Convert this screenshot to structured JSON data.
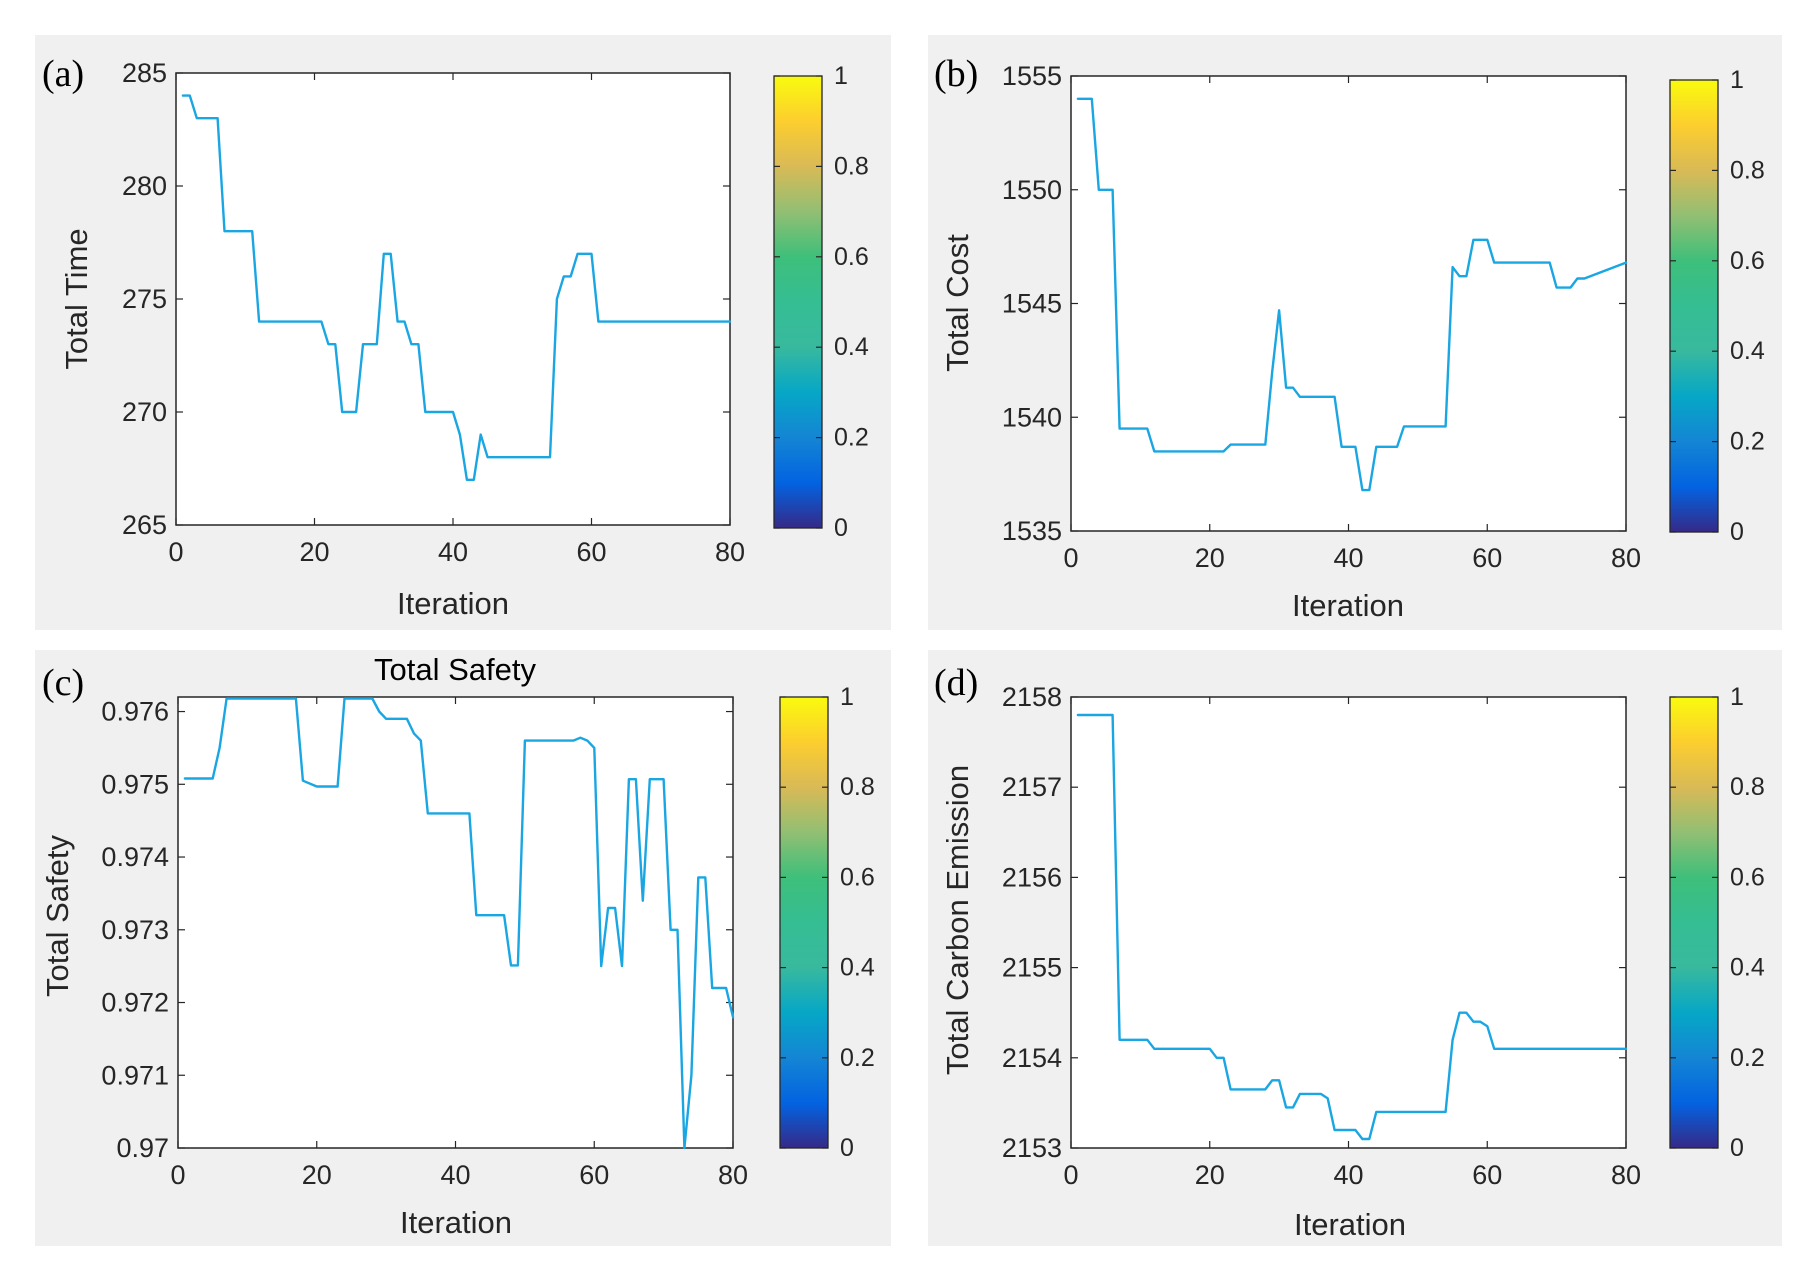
{
  "figure": {
    "background": "#ffffff",
    "panel_background": "#f0f0f0",
    "line_color": "#1aa6e2"
  },
  "chart_data": [
    {
      "id": "a",
      "type": "line",
      "tag": "(a)",
      "title": "",
      "xlabel": "Iteration",
      "ylabel": "Total Time",
      "xlim": [
        0,
        80
      ],
      "ylim": [
        265,
        285
      ],
      "xticks": [
        0,
        20,
        40,
        60,
        80
      ],
      "xtick_labels": [
        "0",
        "20",
        "40",
        "60",
        "80"
      ],
      "yticks": [
        265,
        270,
        275,
        280,
        285
      ],
      "ytick_labels": [
        "265",
        "270",
        "275",
        "280",
        "285"
      ],
      "colorbar": {
        "ticks": [
          0,
          0.2,
          0.4,
          0.6,
          0.8,
          1
        ],
        "labels": [
          "0",
          "0.2",
          "0.4",
          "0.6",
          "0.8",
          "1"
        ]
      },
      "series": [
        {
          "name": "Total Time",
          "color": "#1aa6e2",
          "x": [
            1,
            2,
            3,
            5,
            6,
            7,
            8,
            11,
            12,
            13,
            21,
            22,
            23,
            24,
            25,
            26,
            27,
            28,
            29,
            30,
            31,
            32,
            33,
            34,
            35,
            36,
            37,
            39,
            40,
            41,
            42,
            43,
            44,
            45,
            46,
            47,
            54,
            55,
            56,
            57,
            58,
            59,
            60,
            61,
            62,
            80
          ],
          "y": [
            284,
            284,
            283,
            283,
            283,
            278,
            278,
            278,
            274,
            274,
            274,
            273,
            273,
            270,
            270,
            270,
            273,
            273,
            273,
            277,
            277,
            274,
            274,
            273,
            273,
            270,
            270,
            270,
            270,
            269,
            267,
            267,
            269,
            268,
            268,
            268,
            268,
            275,
            276,
            276,
            277,
            277,
            277,
            274,
            274,
            274
          ]
        }
      ]
    },
    {
      "id": "b",
      "type": "line",
      "tag": "(b)",
      "title": "",
      "xlabel": "Iteration",
      "ylabel": "Total Cost",
      "xlim": [
        0,
        80
      ],
      "ylim": [
        1535,
        1555
      ],
      "xticks": [
        0,
        20,
        40,
        60,
        80
      ],
      "xtick_labels": [
        "0",
        "20",
        "40",
        "60",
        "80"
      ],
      "yticks": [
        1535,
        1540,
        1545,
        1550,
        1555
      ],
      "ytick_labels": [
        "1535",
        "1540",
        "1545",
        "1550",
        "1555"
      ],
      "colorbar": {
        "ticks": [
          0,
          0.2,
          0.4,
          0.6,
          0.8,
          1
        ],
        "labels": [
          "0",
          "0.2",
          "0.4",
          "0.6",
          "0.8",
          "1"
        ]
      },
      "series": [
        {
          "name": "Total Cost",
          "color": "#1aa6e2",
          "x": [
            1,
            3,
            4,
            6,
            7,
            8,
            11,
            12,
            22,
            23,
            28,
            29,
            30,
            31,
            32,
            33,
            38,
            39,
            40,
            41,
            42,
            43,
            44,
            47,
            48,
            54,
            55,
            56,
            57,
            58,
            59,
            60,
            61,
            69,
            70,
            72,
            73,
            74,
            80
          ],
          "y": [
            1554,
            1554,
            1550,
            1550,
            1539.5,
            1539.5,
            1539.5,
            1538.5,
            1538.5,
            1538.8,
            1538.8,
            1542,
            1544.7,
            1541.3,
            1541.3,
            1540.9,
            1540.9,
            1538.7,
            1538.7,
            1538.7,
            1536.8,
            1536.8,
            1538.7,
            1538.7,
            1539.6,
            1539.6,
            1546.6,
            1546.2,
            1546.2,
            1547.8,
            1547.8,
            1547.8,
            1546.8,
            1546.8,
            1545.7,
            1545.7,
            1546.1,
            1546.1,
            1546.8
          ]
        }
      ]
    },
    {
      "id": "c",
      "type": "line",
      "tag": "(c)",
      "title": "Total Safety",
      "xlabel": "Iteration",
      "ylabel": "Total Safety",
      "xlim": [
        0,
        80
      ],
      "ylim": [
        0.97,
        0.9762
      ],
      "xticks": [
        0,
        20,
        40,
        60,
        80
      ],
      "xtick_labels": [
        "0",
        "20",
        "40",
        "60",
        "80"
      ],
      "yticks": [
        0.97,
        0.971,
        0.972,
        0.973,
        0.974,
        0.975,
        0.976
      ],
      "ytick_labels": [
        "0.97",
        "0.971",
        "0.972",
        "0.973",
        "0.974",
        "0.975",
        "0.976"
      ],
      "colorbar": {
        "ticks": [
          0,
          0.2,
          0.4,
          0.6,
          0.8,
          1
        ],
        "labels": [
          "0",
          "0.2",
          "0.4",
          "0.6",
          "0.8",
          "1"
        ]
      },
      "series": [
        {
          "name": "Total Safety",
          "color": "#1aa6e2",
          "x": [
            1,
            2,
            5,
            6,
            7,
            8,
            17,
            18,
            20,
            23,
            24,
            25,
            28,
            29,
            30,
            33,
            34,
            35,
            36,
            37,
            42,
            43,
            47,
            48,
            49,
            50,
            57,
            58,
            59,
            60,
            61,
            62,
            63,
            64,
            65,
            66,
            67,
            68,
            69,
            70,
            71,
            72,
            73,
            74,
            75,
            76,
            77,
            78,
            79,
            80
          ],
          "y": [
            0.97508,
            0.97508,
            0.97508,
            0.9755,
            0.97618,
            0.97618,
            0.97618,
            0.97505,
            0.97497,
            0.97497,
            0.97618,
            0.97618,
            0.97618,
            0.976,
            0.9759,
            0.9759,
            0.9757,
            0.9756,
            0.9746,
            0.9746,
            0.9746,
            0.9732,
            0.9732,
            0.97251,
            0.97251,
            0.9756,
            0.9756,
            0.97564,
            0.9756,
            0.9755,
            0.9725,
            0.9733,
            0.9733,
            0.9725,
            0.97507,
            0.97507,
            0.9734,
            0.97507,
            0.97507,
            0.97507,
            0.973,
            0.973,
            0.97,
            0.971,
            0.97372,
            0.97372,
            0.9722,
            0.9722,
            0.9722,
            0.9718
          ]
        }
      ]
    },
    {
      "id": "d",
      "type": "line",
      "tag": "(d)",
      "title": "",
      "xlabel": "Iteration",
      "ylabel": "Total Carbon Emission",
      "xlim": [
        0,
        80
      ],
      "ylim": [
        2153,
        2158
      ],
      "xticks": [
        0,
        20,
        40,
        60,
        80
      ],
      "xtick_labels": [
        "0",
        "20",
        "40",
        "60",
        "80"
      ],
      "yticks": [
        2153,
        2154,
        2155,
        2156,
        2157,
        2158
      ],
      "ytick_labels": [
        "2153",
        "2154",
        "2155",
        "2156",
        "2157",
        "2158"
      ],
      "colorbar": {
        "ticks": [
          0,
          0.2,
          0.4,
          0.6,
          0.8,
          1
        ],
        "labels": [
          "0",
          "0.2",
          "0.4",
          "0.6",
          "0.8",
          "1"
        ]
      },
      "series": [
        {
          "name": "Total Carbon Emission",
          "color": "#1aa6e2",
          "x": [
            1,
            6,
            7,
            11,
            12,
            20,
            21,
            22,
            23,
            28,
            29,
            30,
            31,
            32,
            33,
            36,
            37,
            38,
            41,
            42,
            43,
            44,
            45,
            54,
            55,
            56,
            57,
            58,
            59,
            60,
            61,
            80
          ],
          "y": [
            2157.8,
            2157.8,
            2154.2,
            2154.2,
            2154.1,
            2154.1,
            2154,
            2154,
            2153.65,
            2153.65,
            2153.75,
            2153.75,
            2153.45,
            2153.45,
            2153.6,
            2153.6,
            2153.55,
            2153.2,
            2153.2,
            2153.1,
            2153.1,
            2153.4,
            2153.4,
            2153.4,
            2154.2,
            2154.5,
            2154.5,
            2154.4,
            2154.4,
            2154.35,
            2154.1,
            2154.1
          ]
        }
      ]
    }
  ]
}
